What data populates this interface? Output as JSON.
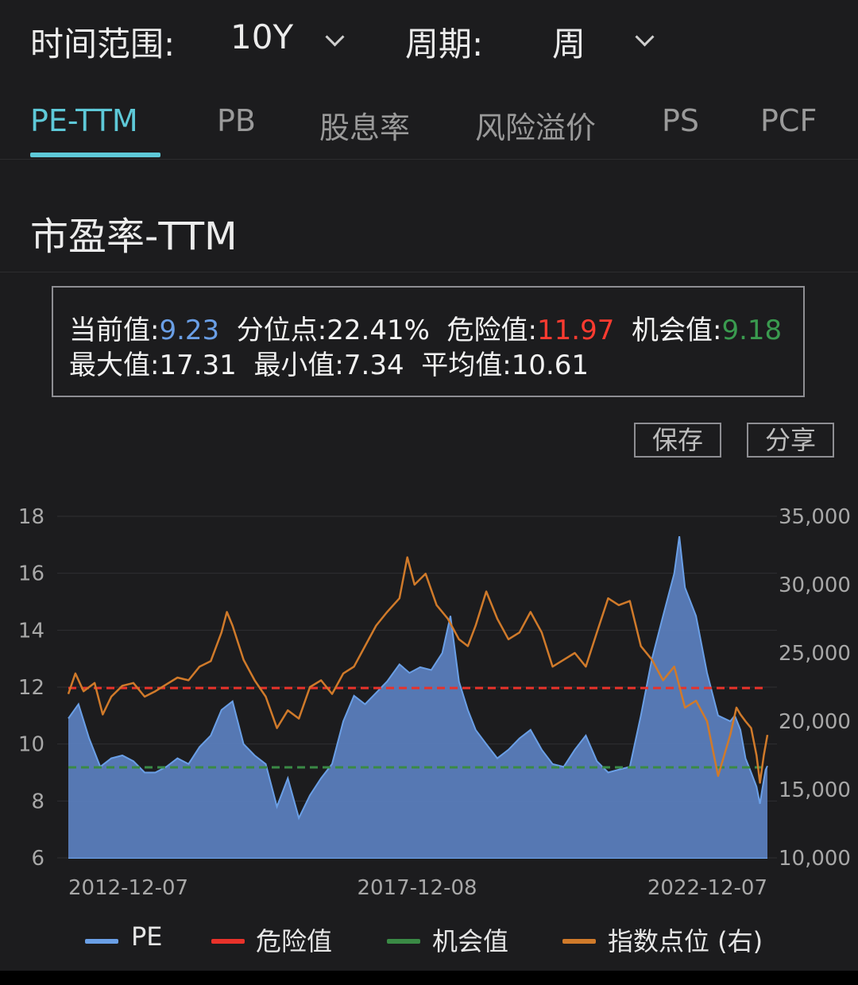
{
  "filters": {
    "range_label": "时间范围:",
    "range_value": "10Y",
    "period_label": "周期:",
    "period_value": "周"
  },
  "tabs": [
    {
      "label": "PE-TTM",
      "active": true
    },
    {
      "label": "PB",
      "active": false
    },
    {
      "label": "股息率",
      "active": false
    },
    {
      "label": "风险溢价",
      "active": false
    },
    {
      "label": "PS",
      "active": false
    },
    {
      "label": "PCF",
      "active": false
    }
  ],
  "section_title": "市盈率-TTM",
  "stats": {
    "current_label": "当前值:",
    "current_value": "9.23",
    "percentile_label": "分位点:",
    "percentile_value": "22.41%",
    "danger_label": "危险值:",
    "danger_value": "11.97",
    "opportunity_label": "机会值:",
    "opportunity_value": "9.18",
    "max_label": "最大值:",
    "max_value": "17.31",
    "min_label": "最小值:",
    "min_value": "7.34",
    "avg_label": "平均值:",
    "avg_value": "10.61"
  },
  "actions": {
    "save_label": "保存",
    "share_label": "分享"
  },
  "colors": {
    "pe": "#6a9fe6",
    "pe_fill": "#5b80c0",
    "danger": "#e8322a",
    "opportunity": "#3a8a45",
    "index": "#d07a2a",
    "accent": "#5ec9d8"
  },
  "chart_data": {
    "type": "area",
    "x_ticks": [
      "2012-12-07",
      "2017-12-08",
      "2022-12-07"
    ],
    "yleft_ticks": [
      "18",
      "16",
      "14",
      "12",
      "10",
      "8",
      "6"
    ],
    "yright_ticks": [
      "35,000",
      "30,000",
      "25,000",
      "20,000",
      "15,000",
      "10,000"
    ],
    "ylim_left": [
      6,
      18
    ],
    "ylim_right": [
      10000,
      35000
    ],
    "x_range": [
      "2012-12-07",
      "2023-06-30"
    ],
    "grid": true,
    "legend_position": "bottom",
    "series": [
      {
        "name": "PE",
        "axis": "left",
        "style": "area",
        "points": [
          [
            "2012-12-07",
            10.9
          ],
          [
            "2013-02-01",
            11.4
          ],
          [
            "2013-04-01",
            10.2
          ],
          [
            "2013-06-01",
            9.2
          ],
          [
            "2013-08-01",
            9.5
          ],
          [
            "2013-10-01",
            9.6
          ],
          [
            "2013-12-01",
            9.4
          ],
          [
            "2014-02-01",
            9.0
          ],
          [
            "2014-04-01",
            9.0
          ],
          [
            "2014-06-01",
            9.2
          ],
          [
            "2014-08-01",
            9.5
          ],
          [
            "2014-10-01",
            9.3
          ],
          [
            "2014-12-01",
            9.9
          ],
          [
            "2015-02-01",
            10.3
          ],
          [
            "2015-04-01",
            11.2
          ],
          [
            "2015-06-01",
            11.5
          ],
          [
            "2015-08-01",
            10.0
          ],
          [
            "2015-10-01",
            9.6
          ],
          [
            "2015-12-01",
            9.3
          ],
          [
            "2016-02-01",
            7.8
          ],
          [
            "2016-04-01",
            8.8
          ],
          [
            "2016-06-01",
            7.4
          ],
          [
            "2016-08-01",
            8.2
          ],
          [
            "2016-10-01",
            8.8
          ],
          [
            "2016-12-01",
            9.3
          ],
          [
            "2017-02-01",
            10.8
          ],
          [
            "2017-04-01",
            11.7
          ],
          [
            "2017-06-01",
            11.4
          ],
          [
            "2017-08-01",
            11.8
          ],
          [
            "2017-10-01",
            12.2
          ],
          [
            "2017-12-08",
            12.8
          ],
          [
            "2018-02-01",
            12.5
          ],
          [
            "2018-04-01",
            12.7
          ],
          [
            "2018-06-01",
            12.6
          ],
          [
            "2018-08-01",
            13.2
          ],
          [
            "2018-09-15",
            14.5
          ],
          [
            "2018-11-01",
            12.2
          ],
          [
            "2018-12-20",
            11.2
          ],
          [
            "2019-02-01",
            10.5
          ],
          [
            "2019-04-01",
            10.0
          ],
          [
            "2019-06-01",
            9.5
          ],
          [
            "2019-08-01",
            9.8
          ],
          [
            "2019-10-01",
            10.2
          ],
          [
            "2019-12-01",
            10.5
          ],
          [
            "2020-02-01",
            9.8
          ],
          [
            "2020-04-01",
            9.3
          ],
          [
            "2020-06-01",
            9.2
          ],
          [
            "2020-08-01",
            9.8
          ],
          [
            "2020-10-01",
            10.3
          ],
          [
            "2020-12-01",
            9.4
          ],
          [
            "2021-02-01",
            9.0
          ],
          [
            "2021-04-01",
            9.1
          ],
          [
            "2021-06-01",
            9.2
          ],
          [
            "2021-08-01",
            11.0
          ],
          [
            "2021-10-01",
            13.0
          ],
          [
            "2021-12-01",
            14.5
          ],
          [
            "2022-02-01",
            16.0
          ],
          [
            "2022-03-01",
            17.3
          ],
          [
            "2022-04-01",
            15.5
          ],
          [
            "2022-06-01",
            14.5
          ],
          [
            "2022-08-01",
            12.5
          ],
          [
            "2022-10-01",
            11.0
          ],
          [
            "2022-12-07",
            10.8
          ],
          [
            "2023-01-01",
            11.0
          ],
          [
            "2023-02-01",
            10.5
          ],
          [
            "2023-03-01",
            9.5
          ],
          [
            "2023-04-01",
            9.0
          ],
          [
            "2023-05-01",
            8.5
          ],
          [
            "2023-05-20",
            7.9
          ],
          [
            "2023-06-01",
            8.4
          ],
          [
            "2023-06-20",
            9.1
          ],
          [
            "2023-06-30",
            9.23
          ]
        ]
      },
      {
        "name": "危险值",
        "axis": "left",
        "style": "dashed",
        "value": 11.97
      },
      {
        "name": "机会值",
        "axis": "left",
        "style": "dashed",
        "value": 9.18
      },
      {
        "name": "指数点位 (右)",
        "axis": "right",
        "style": "line",
        "points": [
          [
            "2012-12-07",
            22000
          ],
          [
            "2013-01-15",
            23500
          ],
          [
            "2013-03-01",
            22200
          ],
          [
            "2013-05-01",
            22800
          ],
          [
            "2013-06-15",
            20500
          ],
          [
            "2013-08-01",
            21800
          ],
          [
            "2013-10-01",
            22600
          ],
          [
            "2013-12-01",
            22800
          ],
          [
            "2014-02-01",
            21800
          ],
          [
            "2014-04-01",
            22200
          ],
          [
            "2014-06-01",
            22700
          ],
          [
            "2014-08-01",
            23200
          ],
          [
            "2014-10-01",
            23000
          ],
          [
            "2014-12-01",
            24000
          ],
          [
            "2015-02-01",
            24400
          ],
          [
            "2015-04-01",
            26500
          ],
          [
            "2015-05-01",
            28000
          ],
          [
            "2015-06-01",
            27000
          ],
          [
            "2015-08-01",
            24500
          ],
          [
            "2015-10-01",
            23000
          ],
          [
            "2015-12-01",
            21800
          ],
          [
            "2016-02-01",
            19500
          ],
          [
            "2016-04-01",
            20800
          ],
          [
            "2016-06-01",
            20200
          ],
          [
            "2016-08-01",
            22500
          ],
          [
            "2016-10-01",
            23000
          ],
          [
            "2016-12-01",
            22000
          ],
          [
            "2017-02-01",
            23500
          ],
          [
            "2017-04-01",
            24000
          ],
          [
            "2017-06-01",
            25500
          ],
          [
            "2017-08-01",
            27000
          ],
          [
            "2017-10-01",
            28000
          ],
          [
            "2017-12-08",
            29000
          ],
          [
            "2018-01-20",
            32000
          ],
          [
            "2018-03-01",
            30000
          ],
          [
            "2018-05-01",
            30800
          ],
          [
            "2018-07-01",
            28500
          ],
          [
            "2018-09-01",
            27500
          ],
          [
            "2018-11-01",
            26000
          ],
          [
            "2018-12-20",
            25500
          ],
          [
            "2019-02-01",
            27000
          ],
          [
            "2019-04-01",
            29500
          ],
          [
            "2019-06-01",
            27500
          ],
          [
            "2019-08-01",
            26000
          ],
          [
            "2019-10-01",
            26500
          ],
          [
            "2019-12-01",
            28000
          ],
          [
            "2020-02-01",
            26500
          ],
          [
            "2020-04-01",
            24000
          ],
          [
            "2020-06-01",
            24500
          ],
          [
            "2020-08-01",
            25000
          ],
          [
            "2020-10-01",
            24000
          ],
          [
            "2020-12-01",
            26500
          ],
          [
            "2021-02-01",
            29000
          ],
          [
            "2021-04-01",
            28500
          ],
          [
            "2021-06-01",
            28800
          ],
          [
            "2021-08-01",
            25500
          ],
          [
            "2021-10-01",
            24500
          ],
          [
            "2021-12-01",
            23000
          ],
          [
            "2022-02-01",
            24000
          ],
          [
            "2022-04-01",
            21000
          ],
          [
            "2022-06-01",
            21500
          ],
          [
            "2022-08-01",
            20000
          ],
          [
            "2022-10-01",
            16000
          ],
          [
            "2022-12-07",
            19000
          ],
          [
            "2023-01-10",
            21000
          ],
          [
            "2023-02-01",
            20500
          ],
          [
            "2023-03-01",
            20000
          ],
          [
            "2023-04-01",
            19500
          ],
          [
            "2023-05-01",
            17500
          ],
          [
            "2023-05-20",
            15500
          ],
          [
            "2023-06-10",
            17500
          ],
          [
            "2023-06-30",
            19000
          ]
        ]
      }
    ]
  }
}
